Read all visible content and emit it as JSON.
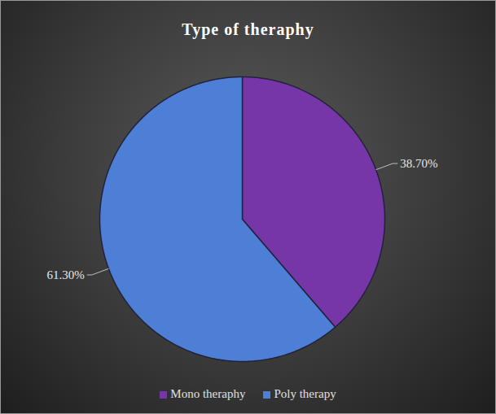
{
  "chart_data": {
    "type": "pie",
    "title": "Type of theraphy",
    "categories": [
      "Mono theraphy",
      "Poly therapy"
    ],
    "values": [
      38.7,
      61.3
    ],
    "value_labels": [
      "38.70%",
      "61.30%"
    ],
    "colors": [
      "#7636a8",
      "#4d7fd6"
    ],
    "data_labels": true,
    "legend": "bottom"
  }
}
